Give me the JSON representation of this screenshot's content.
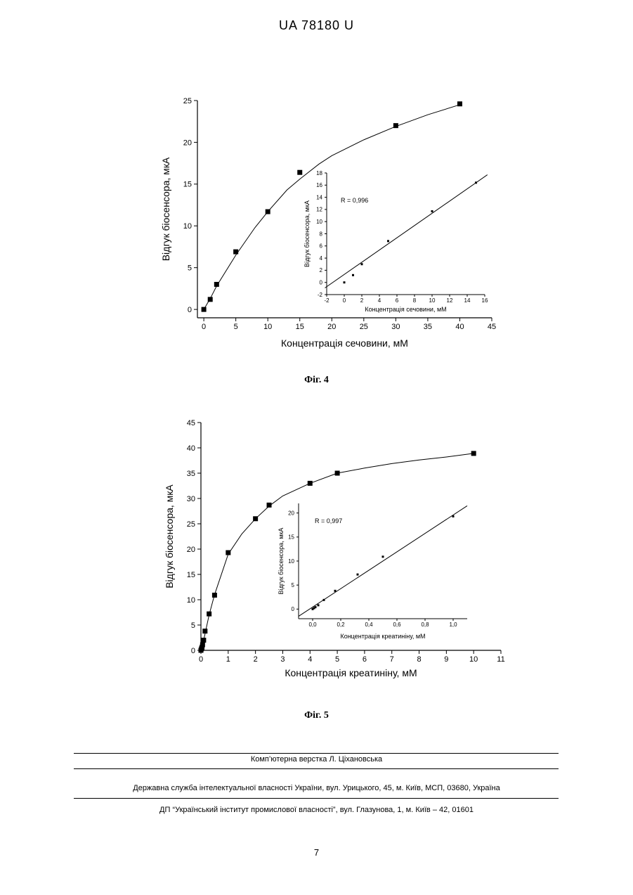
{
  "header": {
    "patent_number": "UA   78180   U"
  },
  "figures": [
    {
      "caption": "Фіг. 4"
    },
    {
      "caption": "Фіг. 5"
    }
  ],
  "footer": {
    "line1": "Комп’ютерна верстка Л. Ціхановська",
    "line2": "Державна служба інтелектуальної власності України, вул. Урицького, 45, м. Київ, МСП, 03680, Україна",
    "line3": "ДП “Український інститут промислової власності”, вул. Глазунова, 1, м. Київ – 42, 01601"
  },
  "page_number": "7",
  "chart_data": [
    {
      "type": "scatter",
      "title": "",
      "xlabel": "Концентрація сечовини, мМ",
      "ylabel": "Відгук біосенсора, мкА",
      "xlim": [
        -1,
        45
      ],
      "ylim": [
        -1,
        25
      ],
      "xticks": [
        "0",
        "5",
        "10",
        "15",
        "20",
        "25",
        "30",
        "35",
        "40",
        "45"
      ],
      "yticks": [
        "0",
        "5",
        "10",
        "15",
        "20",
        "25"
      ],
      "x": [
        0,
        1,
        2,
        5,
        10,
        15,
        30,
        40
      ],
      "y": [
        0,
        1.2,
        3.0,
        6.9,
        11.7,
        16.4,
        22.0,
        24.6
      ],
      "fit_curve": {
        "x": [
          0,
          1,
          2,
          5,
          8,
          10,
          13,
          15,
          18,
          20,
          25,
          30,
          35,
          40
        ],
        "y": [
          0,
          1.3,
          2.8,
          6.5,
          9.8,
          11.7,
          14.3,
          15.6,
          17.4,
          18.4,
          20.3,
          21.9,
          23.3,
          24.5
        ]
      },
      "inset": {
        "type": "scatter",
        "xlabel": "Концентрація сечовини, мМ",
        "ylabel": "Відгук біосенсора, мкА",
        "annotation": "R = 0,996",
        "xlim": [
          -2,
          16
        ],
        "ylim": [
          -2,
          18
        ],
        "xticks": [
          "-2",
          "0",
          "2",
          "4",
          "6",
          "8",
          "10",
          "12",
          "14",
          "16"
        ],
        "yticks": [
          "-2",
          "0",
          "2",
          "4",
          "6",
          "8",
          "10",
          "12",
          "14",
          "16",
          "18"
        ],
        "x": [
          0,
          1,
          2,
          5,
          10,
          15
        ],
        "y": [
          0,
          1.2,
          3.0,
          6.8,
          11.7,
          16.4
        ],
        "fit_line": {
          "x": [
            -2.2,
            16.3
          ],
          "y": [
            -0.9,
            17.7
          ]
        }
      }
    },
    {
      "type": "scatter",
      "title": "",
      "xlabel": "Концентрація креатиніну, мМ",
      "ylabel": "Відгук біосенсора, мкА",
      "xlim": [
        0,
        11
      ],
      "ylim": [
        0,
        45
      ],
      "xticks": [
        "0",
        "1",
        "2",
        "3",
        "4",
        "5",
        "6",
        "7",
        "8",
        "9",
        "10",
        "11"
      ],
      "yticks": [
        "0",
        "5",
        "10",
        "15",
        "20",
        "25",
        "30",
        "35",
        "40",
        "45"
      ],
      "x": [
        0,
        0.02,
        0.04,
        0.06,
        0.1,
        0.15,
        0.3,
        0.5,
        1,
        2,
        2.5,
        4,
        5,
        10
      ],
      "y": [
        0,
        0.3,
        0.6,
        1.1,
        2.0,
        3.8,
        7.2,
        10.9,
        19.3,
        26.0,
        28.7,
        33.0,
        35.0,
        38.9
      ],
      "fit_curve": {
        "x": [
          0,
          0.1,
          0.3,
          0.5,
          1,
          1.5,
          2,
          2.5,
          3,
          4,
          5,
          6,
          7,
          8,
          9,
          10
        ],
        "y": [
          0,
          2,
          7,
          11,
          19,
          23,
          26,
          28.5,
          30.5,
          33,
          35,
          36,
          36.9,
          37.6,
          38.2,
          38.9
        ]
      },
      "inset": {
        "type": "scatter",
        "xlabel": "Концентрація креатиніну, мМ",
        "ylabel": "Відгук біосенсора, мкА",
        "annotation": "R = 0,997",
        "xlim": [
          -0.1,
          1.1
        ],
        "ylim": [
          -2,
          22
        ],
        "xticks": [
          "0,0",
          "0,2",
          "0,4",
          "0,6",
          "0,8",
          "1,0"
        ],
        "yticks": [
          "0",
          "5",
          "10",
          "15",
          "20"
        ],
        "x": [
          0,
          0.01,
          0.02,
          0.04,
          0.08,
          0.16,
          0.32,
          0.5,
          1.0
        ],
        "y": [
          0,
          0.2,
          0.4,
          0.8,
          1.9,
          3.8,
          7.2,
          10.9,
          19.3
        ],
        "fit_line": {
          "x": [
            -0.1,
            1.1
          ],
          "y": [
            -1.5,
            21.5
          ]
        }
      }
    }
  ]
}
